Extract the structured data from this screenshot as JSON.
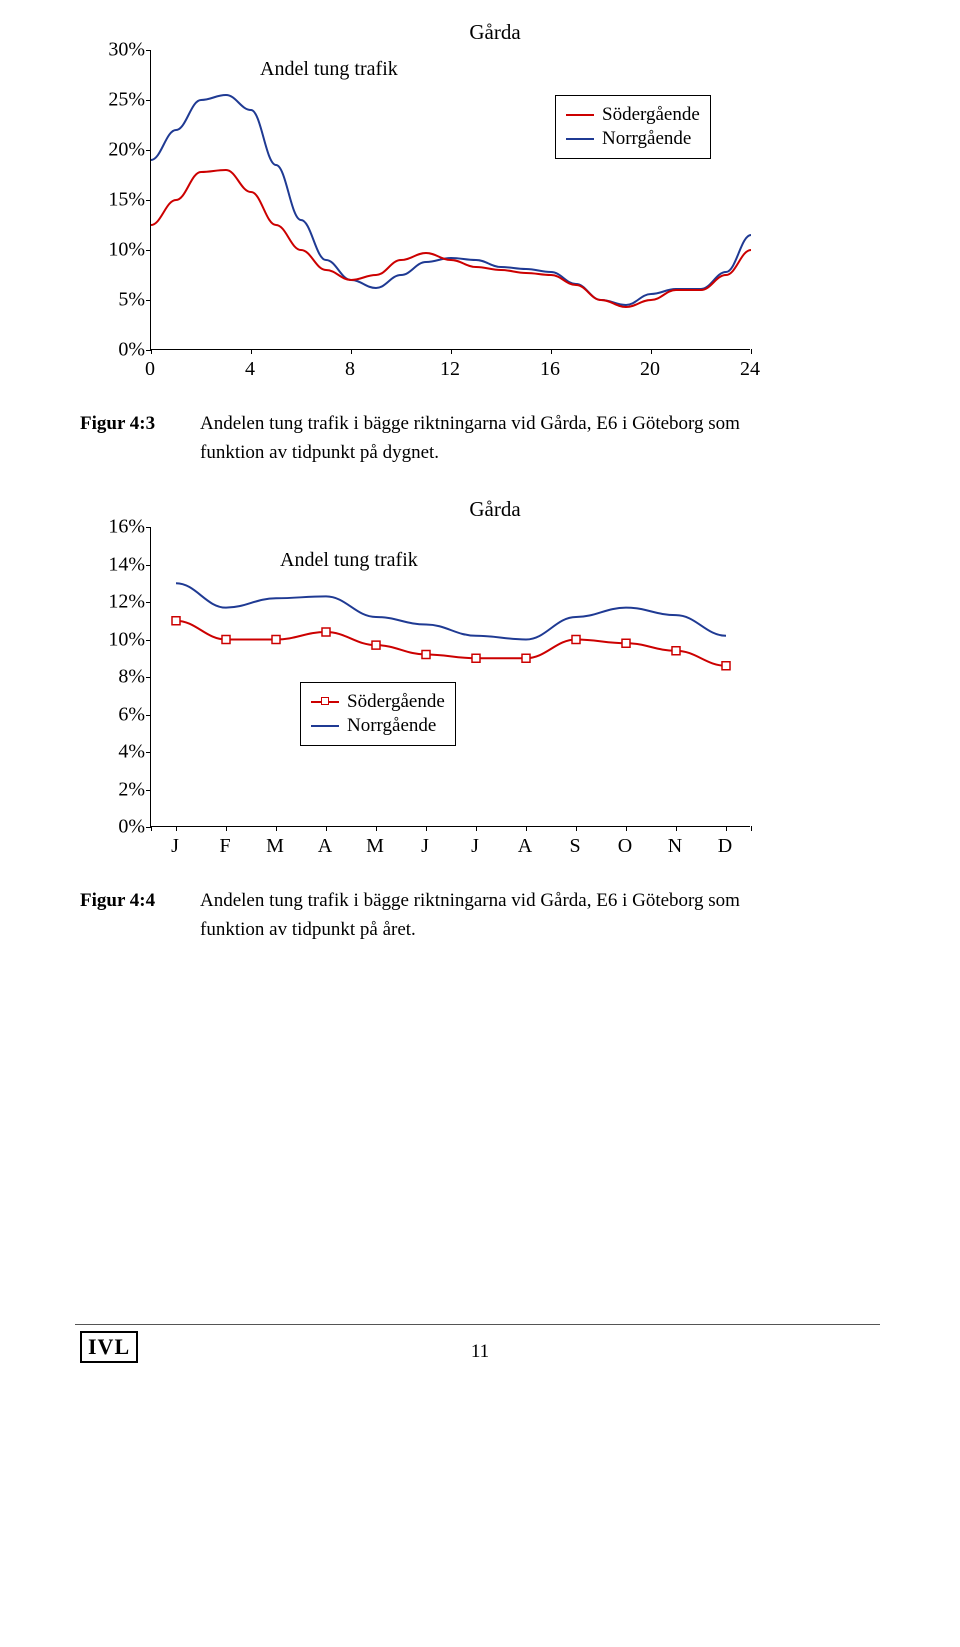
{
  "chart1": {
    "type": "line",
    "title": "Gårda",
    "series_label": "Andel tung trafik",
    "legend": [
      "Södergående",
      "Norrgående"
    ],
    "x": [
      0,
      1,
      2,
      3,
      4,
      5,
      6,
      7,
      8,
      9,
      10,
      11,
      12,
      13,
      14,
      15,
      16,
      17,
      18,
      19,
      20,
      21,
      22,
      23,
      24
    ],
    "sodergaende": [
      12.5,
      15,
      17.8,
      18,
      15.8,
      12.5,
      10,
      8,
      7,
      7.5,
      9,
      9.7,
      9,
      8.3,
      8,
      7.7,
      7.5,
      6.5,
      5,
      4.3,
      5,
      6,
      6,
      7.5,
      10
    ],
    "norrgaende": [
      19,
      22,
      25,
      25.5,
      24,
      18.5,
      13,
      9,
      7,
      6.2,
      7.5,
      8.8,
      9.2,
      9,
      8.3,
      8.1,
      7.8,
      6.6,
      5,
      4.5,
      5.6,
      6.1,
      6.1,
      7.8,
      11.5
    ],
    "colors": {
      "sodergaende": "#cc0000",
      "norrgaende": "#1f3a93",
      "bg": "#ffffff"
    },
    "xaxis": {
      "min": 0,
      "max": 24,
      "ticks": [
        0,
        4,
        8,
        12,
        16,
        20,
        24
      ]
    },
    "yaxis": {
      "min": 0,
      "max": 30,
      "ticks": [
        0,
        5,
        10,
        15,
        20,
        25,
        30
      ],
      "tick_labels": [
        "0%",
        "5%",
        "10%",
        "15%",
        "20%",
        "25%",
        "30%"
      ]
    },
    "line_width": 2
  },
  "caption1": {
    "label": "Figur 4:3",
    "text": "Andelen tung trafik i bägge riktningarna vid Gårda, E6 i Göteborg som funktion av tidpunkt på dygnet."
  },
  "chart2": {
    "type": "line",
    "title": "Gårda",
    "series_label": "Andel tung trafik",
    "legend": [
      "Södergående",
      "Norrgående"
    ],
    "months": [
      "J",
      "F",
      "M",
      "A",
      "M",
      "J",
      "J",
      "A",
      "S",
      "O",
      "N",
      "D"
    ],
    "sodergaende": [
      11,
      10,
      10,
      10.4,
      9.7,
      9.2,
      9,
      9,
      10,
      9.8,
      9.4,
      8.6
    ],
    "norrgaende": [
      13,
      11.7,
      12.2,
      12.3,
      11.2,
      10.8,
      10.2,
      10,
      11.2,
      11.7,
      11.3,
      10.2
    ],
    "colors": {
      "sodergaende": "#cc0000",
      "norrgaende": "#1f3a93",
      "bg": "#ffffff"
    },
    "yaxis": {
      "min": 0,
      "max": 16,
      "ticks": [
        0,
        2,
        4,
        6,
        8,
        10,
        12,
        14,
        16
      ],
      "tick_labels": [
        "0%",
        "2%",
        "4%",
        "6%",
        "8%",
        "10%",
        "12%",
        "14%",
        "16%"
      ]
    },
    "line_width": 2,
    "marker": "square"
  },
  "caption2": {
    "label": "Figur 4:4",
    "text": "Andelen tung trafik i bägge riktningarna vid Gårda, E6 i Göteborg som funktion av tidpunkt på året."
  },
  "footer": {
    "logo": "IVL",
    "page": "11"
  }
}
